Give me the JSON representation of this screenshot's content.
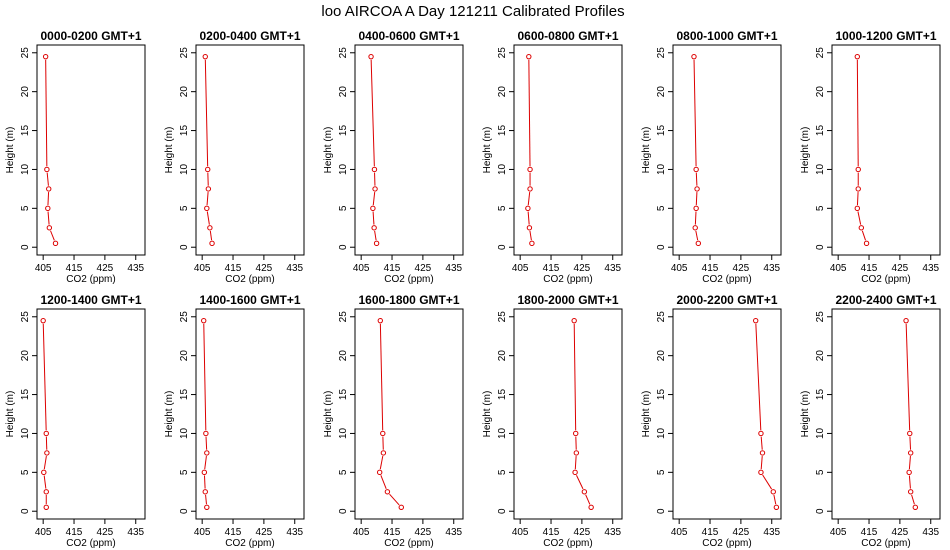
{
  "figure_title": "loo AIRCOA A  Day 121211  Calibrated Profiles",
  "colors": {
    "series": "#dd0000",
    "axes": "#000000"
  },
  "chart_data": [
    {
      "type": "line",
      "title": "0000-0200 GMT+1",
      "xlabel": "CO2 (ppm)",
      "ylabel": "Height (m)",
      "xlim": [
        403,
        438
      ],
      "ylim": [
        -1,
        26
      ],
      "xticks": [
        "405",
        "415",
        "425",
        "435"
      ],
      "yticks": [
        "0",
        "5",
        "10",
        "15",
        "20",
        "25"
      ],
      "x": [
        409.0,
        407.0,
        406.5,
        406.8,
        406.2,
        405.8
      ],
      "y": [
        0.5,
        2.5,
        5,
        7.5,
        10,
        24.5
      ]
    },
    {
      "type": "line",
      "title": "0200-0400 GMT+1",
      "xlabel": "CO2 (ppm)",
      "ylabel": "Height (m)",
      "xlim": [
        403,
        438
      ],
      "ylim": [
        -1,
        26
      ],
      "xticks": [
        "405",
        "415",
        "425",
        "435"
      ],
      "yticks": [
        "0",
        "5",
        "10",
        "15",
        "20",
        "25"
      ],
      "x": [
        408.2,
        407.5,
        406.5,
        407.0,
        406.8,
        406.0
      ],
      "y": [
        0.5,
        2.5,
        5,
        7.5,
        10,
        24.5
      ]
    },
    {
      "type": "line",
      "title": "0400-0600 GMT+1",
      "xlabel": "CO2 (ppm)",
      "ylabel": "Height (m)",
      "xlim": [
        403,
        438
      ],
      "ylim": [
        -1,
        26
      ],
      "xticks": [
        "405",
        "415",
        "425",
        "435"
      ],
      "yticks": [
        "0",
        "5",
        "10",
        "15",
        "20",
        "25"
      ],
      "x": [
        410.0,
        409.2,
        408.8,
        409.5,
        409.3,
        408.2
      ],
      "y": [
        0.5,
        2.5,
        5,
        7.5,
        10,
        24.5
      ]
    },
    {
      "type": "line",
      "title": "0600-0800 GMT+1",
      "xlabel": "CO2 (ppm)",
      "ylabel": "Height (m)",
      "xlim": [
        403,
        438
      ],
      "ylim": [
        -1,
        26
      ],
      "xticks": [
        "405",
        "415",
        "425",
        "435"
      ],
      "yticks": [
        "0",
        "5",
        "10",
        "15",
        "20",
        "25"
      ],
      "x": [
        408.8,
        408.0,
        407.5,
        408.2,
        408.2,
        407.8
      ],
      "y": [
        0.5,
        2.5,
        5,
        7.5,
        10,
        24.5
      ]
    },
    {
      "type": "line",
      "title": "0800-1000 GMT+1",
      "xlabel": "CO2 (ppm)",
      "ylabel": "Height (m)",
      "xlim": [
        403,
        438
      ],
      "ylim": [
        -1,
        26
      ],
      "xticks": [
        "405",
        "415",
        "425",
        "435"
      ],
      "yticks": [
        "0",
        "5",
        "10",
        "15",
        "20",
        "25"
      ],
      "x": [
        411.2,
        410.2,
        410.5,
        410.8,
        410.5,
        409.8
      ],
      "y": [
        0.5,
        2.5,
        5,
        7.5,
        10,
        24.5
      ]
    },
    {
      "type": "line",
      "title": "1000-1200 GMT+1",
      "xlabel": "CO2 (ppm)",
      "ylabel": "Height (m)",
      "xlim": [
        403,
        438
      ],
      "ylim": [
        -1,
        26
      ],
      "xticks": [
        "405",
        "415",
        "425",
        "435"
      ],
      "yticks": [
        "0",
        "5",
        "10",
        "15",
        "20",
        "25"
      ],
      "x": [
        414.2,
        412.5,
        411.2,
        411.5,
        411.5,
        411.2
      ],
      "y": [
        0.5,
        2.5,
        5,
        7.5,
        10,
        24.5
      ]
    },
    {
      "type": "line",
      "title": "1200-1400 GMT+1",
      "xlabel": "CO2 (ppm)",
      "ylabel": "Height (m)",
      "xlim": [
        403,
        438
      ],
      "ylim": [
        -1,
        26
      ],
      "xticks": [
        "405",
        "415",
        "425",
        "435"
      ],
      "yticks": [
        "0",
        "5",
        "10",
        "15",
        "20",
        "25"
      ],
      "x": [
        406.0,
        406.0,
        405.2,
        406.2,
        406.0,
        405.0
      ],
      "y": [
        0.5,
        2.5,
        5,
        7.5,
        10,
        24.5
      ]
    },
    {
      "type": "line",
      "title": "1400-1600 GMT+1",
      "xlabel": "CO2 (ppm)",
      "ylabel": "Height (m)",
      "xlim": [
        403,
        438
      ],
      "ylim": [
        -1,
        26
      ],
      "xticks": [
        "405",
        "415",
        "425",
        "435"
      ],
      "yticks": [
        "0",
        "5",
        "10",
        "15",
        "20",
        "25"
      ],
      "x": [
        406.5,
        406.0,
        405.7,
        406.5,
        406.2,
        405.5
      ],
      "y": [
        0.5,
        2.5,
        5,
        7.5,
        10,
        24.5
      ]
    },
    {
      "type": "line",
      "title": "1600-1800 GMT+1",
      "xlabel": "CO2 (ppm)",
      "ylabel": "Height (m)",
      "xlim": [
        403,
        438
      ],
      "ylim": [
        -1,
        26
      ],
      "xticks": [
        "405",
        "415",
        "425",
        "435"
      ],
      "yticks": [
        "0",
        "5",
        "10",
        "15",
        "20",
        "25"
      ],
      "x": [
        418.0,
        413.5,
        411.0,
        412.2,
        412.0,
        411.2
      ],
      "y": [
        0.5,
        2.5,
        5,
        7.5,
        10,
        24.5
      ]
    },
    {
      "type": "line",
      "title": "1800-2000 GMT+1",
      "xlabel": "CO2 (ppm)",
      "ylabel": "Height (m)",
      "xlim": [
        403,
        438
      ],
      "ylim": [
        -1,
        26
      ],
      "xticks": [
        "405",
        "415",
        "425",
        "435"
      ],
      "yticks": [
        "0",
        "5",
        "10",
        "15",
        "20",
        "25"
      ],
      "x": [
        428.0,
        425.8,
        422.8,
        423.2,
        423.0,
        422.5
      ],
      "y": [
        0.5,
        2.5,
        5,
        7.5,
        10,
        24.5
      ]
    },
    {
      "type": "line",
      "title": "2000-2200 GMT+1",
      "xlabel": "CO2 (ppm)",
      "ylabel": "Height (m)",
      "xlim": [
        403,
        438
      ],
      "ylim": [
        -1,
        26
      ],
      "xticks": [
        "405",
        "415",
        "425",
        "435"
      ],
      "yticks": [
        "0",
        "5",
        "10",
        "15",
        "20",
        "25"
      ],
      "x": [
        436.5,
        435.5,
        431.5,
        432.0,
        431.5,
        429.8
      ],
      "y": [
        0.5,
        2.5,
        5,
        7.5,
        10,
        24.5
      ]
    },
    {
      "type": "line",
      "title": "2200-2400 GMT+1",
      "xlabel": "CO2 (ppm)",
      "ylabel": "Height (m)",
      "xlim": [
        403,
        438
      ],
      "ylim": [
        -1,
        26
      ],
      "xticks": [
        "405",
        "415",
        "425",
        "435"
      ],
      "yticks": [
        "0",
        "5",
        "10",
        "15",
        "20",
        "25"
      ],
      "x": [
        430.0,
        428.5,
        428.0,
        428.5,
        428.2,
        427.0
      ],
      "y": [
        0.5,
        2.5,
        5,
        7.5,
        10,
        24.5
      ]
    }
  ]
}
